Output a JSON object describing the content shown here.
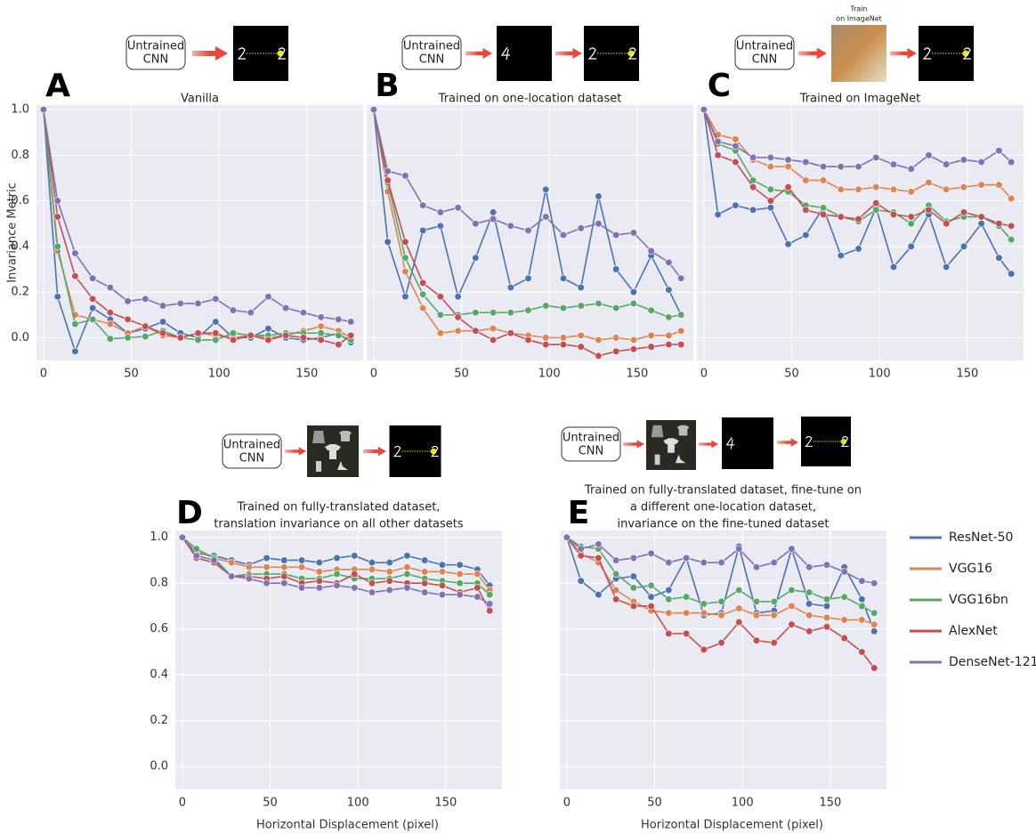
{
  "chart_data": [
    {
      "type": "line",
      "label": "A",
      "title": [
        "Vanilla"
      ],
      "ylabel": "Invariance Metric",
      "pipeline": {
        "box": [
          "Untrained",
          "CNN"
        ]
      },
      "x": [
        0,
        8,
        18,
        28,
        38,
        48,
        58,
        68,
        78,
        88,
        98,
        108,
        118,
        128,
        138,
        148,
        158,
        168,
        175
      ],
      "xlim": [
        -4,
        182
      ],
      "ylim": [
        -0.1,
        1.02
      ],
      "xticks": [
        0,
        50,
        100,
        150
      ],
      "yticks": [
        {
          "value": 0,
          "label": "0.0"
        },
        {
          "value": 0.2,
          "label": "0.2"
        },
        {
          "value": 0.4,
          "label": "0.4"
        },
        {
          "value": 0.6,
          "label": "0.6"
        },
        {
          "value": 0.8,
          "label": "0.8"
        },
        {
          "value": 1,
          "label": "1.0"
        }
      ],
      "grid": true,
      "series": [
        {
          "name": "ResNet-50",
          "color": "#4c72b0",
          "values": [
            1.0,
            0.18,
            -0.06,
            0.13,
            0.08,
            0.02,
            0.04,
            0.07,
            0.02,
            0.0,
            0.07,
            0.0,
            0.0,
            0.04,
            0.0,
            -0.01,
            0.0,
            0.02,
            -0.02
          ]
        },
        {
          "name": "VGG16",
          "color": "#dd8452",
          "values": [
            1.0,
            0.38,
            0.1,
            0.08,
            0.06,
            0.02,
            0.05,
            0.01,
            0.0,
            0.02,
            0.01,
            0.0,
            0.01,
            0.0,
            0.01,
            0.03,
            0.05,
            0.03,
            0.0
          ]
        },
        {
          "name": "VGG16bn",
          "color": "#55a868",
          "values": [
            1.0,
            0.4,
            0.06,
            0.08,
            -0.005,
            0.0,
            0.005,
            0.03,
            0.0,
            -0.01,
            -0.01,
            0.02,
            0.01,
            0.01,
            0.02,
            0.02,
            0.02,
            0.01,
            -0.01
          ]
        },
        {
          "name": "AlexNet",
          "color": "#c44e52",
          "values": [
            1.0,
            0.53,
            0.27,
            0.17,
            0.11,
            0.08,
            0.05,
            0.02,
            0.0,
            0.02,
            0.02,
            -0.01,
            0.01,
            -0.01,
            0.01,
            0.0,
            -0.01,
            -0.03,
            0.01
          ]
        },
        {
          "name": "DenseNet-121",
          "color": "#8172b3",
          "values": [
            1.0,
            0.6,
            0.37,
            0.26,
            0.22,
            0.16,
            0.17,
            0.14,
            0.15,
            0.15,
            0.17,
            0.12,
            0.11,
            0.18,
            0.13,
            0.11,
            0.09,
            0.08,
            0.07
          ]
        }
      ]
    },
    {
      "type": "line",
      "label": "B",
      "title": [
        "Trained on one-location dataset"
      ],
      "pipeline": {
        "box": [
          "Untrained",
          "CNN"
        ]
      },
      "x": [
        0,
        8,
        18,
        28,
        38,
        48,
        58,
        68,
        78,
        88,
        98,
        108,
        118,
        128,
        138,
        148,
        158,
        168,
        175
      ],
      "xlim": [
        -4,
        182
      ],
      "ylim": [
        -0.1,
        1.02
      ],
      "xticks": [
        0,
        50,
        100,
        150
      ],
      "yticks": [
        0,
        0.2,
        0.4,
        0.6,
        0.8,
        1
      ],
      "ytick_labels": false,
      "grid": true,
      "series": [
        {
          "name": "ResNet-50",
          "color": "#4c72b0",
          "values": [
            1.0,
            0.42,
            0.18,
            0.47,
            0.49,
            0.18,
            0.35,
            0.55,
            0.22,
            0.26,
            0.65,
            0.26,
            0.22,
            0.62,
            0.3,
            0.2,
            0.36,
            0.21,
            0.1
          ]
        },
        {
          "name": "VGG16",
          "color": "#dd8452",
          "values": [
            1.0,
            0.64,
            0.29,
            0.13,
            0.02,
            0.03,
            0.03,
            0.04,
            0.02,
            0.01,
            0.0,
            0.0,
            0.01,
            -0.01,
            0.0,
            -0.01,
            0.01,
            0.01,
            0.03
          ]
        },
        {
          "name": "VGG16bn",
          "color": "#55a868",
          "values": [
            1.0,
            0.68,
            0.35,
            0.19,
            0.1,
            0.1,
            0.11,
            0.11,
            0.11,
            0.12,
            0.14,
            0.13,
            0.14,
            0.15,
            0.13,
            0.15,
            0.12,
            0.09,
            0.1
          ]
        },
        {
          "name": "AlexNet",
          "color": "#c44e52",
          "values": [
            1.0,
            0.69,
            0.42,
            0.24,
            0.18,
            0.09,
            0.03,
            -0.01,
            0.02,
            -0.01,
            -0.03,
            -0.03,
            -0.04,
            -0.08,
            -0.06,
            -0.05,
            -0.04,
            -0.03,
            -0.03
          ]
        },
        {
          "name": "DenseNet-121",
          "color": "#8172b3",
          "values": [
            1.0,
            0.73,
            0.71,
            0.58,
            0.55,
            0.57,
            0.5,
            0.52,
            0.49,
            0.47,
            0.53,
            0.45,
            0.48,
            0.5,
            0.45,
            0.46,
            0.38,
            0.33,
            0.26
          ]
        }
      ]
    },
    {
      "type": "line",
      "label": "C",
      "title": [
        "Trained on ImageNet"
      ],
      "pipeline": {
        "box": [
          "Untrained",
          "CNN"
        ],
        "note": [
          "Train",
          "on ImageNet"
        ]
      },
      "x": [
        0,
        8,
        18,
        28,
        38,
        48,
        58,
        68,
        78,
        88,
        98,
        108,
        118,
        128,
        138,
        148,
        158,
        168,
        175
      ],
      "xlim": [
        -4,
        182
      ],
      "ylim": [
        -0.1,
        1.02
      ],
      "xticks": [
        0,
        50,
        100,
        150
      ],
      "yticks": [
        0,
        0.2,
        0.4,
        0.6,
        0.8,
        1
      ],
      "ytick_labels": false,
      "grid": true,
      "series": [
        {
          "name": "ResNet-50",
          "color": "#4c72b0",
          "values": [
            1.0,
            0.54,
            0.58,
            0.56,
            0.57,
            0.41,
            0.45,
            0.57,
            0.36,
            0.39,
            0.57,
            0.31,
            0.4,
            0.54,
            0.31,
            0.4,
            0.5,
            0.35,
            0.28
          ]
        },
        {
          "name": "VGG16",
          "color": "#dd8452",
          "values": [
            1.0,
            0.89,
            0.87,
            0.78,
            0.75,
            0.75,
            0.69,
            0.69,
            0.65,
            0.65,
            0.66,
            0.65,
            0.64,
            0.68,
            0.65,
            0.66,
            0.67,
            0.67,
            0.61
          ]
        },
        {
          "name": "VGG16bn",
          "color": "#55a868",
          "values": [
            1.0,
            0.85,
            0.82,
            0.69,
            0.65,
            0.64,
            0.58,
            0.57,
            0.53,
            0.51,
            0.56,
            0.55,
            0.5,
            0.58,
            0.51,
            0.53,
            0.53,
            0.49,
            0.43
          ]
        },
        {
          "name": "AlexNet",
          "color": "#c44e52",
          "values": [
            1.0,
            0.8,
            0.77,
            0.66,
            0.6,
            0.66,
            0.56,
            0.54,
            0.53,
            0.52,
            0.59,
            0.54,
            0.53,
            0.56,
            0.5,
            0.55,
            0.53,
            0.5,
            0.49
          ]
        },
        {
          "name": "DenseNet-121",
          "color": "#8172b3",
          "values": [
            1.0,
            0.86,
            0.84,
            0.79,
            0.79,
            0.78,
            0.77,
            0.75,
            0.75,
            0.75,
            0.79,
            0.76,
            0.74,
            0.8,
            0.76,
            0.78,
            0.77,
            0.82,
            0.77
          ]
        }
      ]
    },
    {
      "type": "line",
      "label": "D",
      "title": [
        "Trained on fully-translated dataset,",
        "translation invariance on all other datasets"
      ],
      "xlabel": "Horizontal Displacement (pixel)",
      "pipeline": {
        "box": [
          "Untrained",
          "CNN"
        ]
      },
      "x": [
        0,
        8,
        18,
        28,
        38,
        48,
        58,
        68,
        78,
        88,
        98,
        108,
        118,
        128,
        138,
        148,
        158,
        168,
        175
      ],
      "xlim": [
        -4,
        182
      ],
      "ylim": [
        -0.1,
        1.03
      ],
      "xticks": [
        0,
        50,
        100,
        150
      ],
      "yticks": [
        {
          "value": 0,
          "label": "0.0"
        },
        {
          "value": 0.2,
          "label": "0.2"
        },
        {
          "value": 0.4,
          "label": "0.4"
        },
        {
          "value": 0.6,
          "label": "0.6"
        },
        {
          "value": 0.8,
          "label": "0.8"
        },
        {
          "value": 1,
          "label": "1.0"
        }
      ],
      "grid": true,
      "series": [
        {
          "name": "ResNet-50",
          "color": "#4c72b0",
          "values": [
            1.0,
            0.93,
            0.92,
            0.9,
            0.88,
            0.91,
            0.9,
            0.9,
            0.89,
            0.91,
            0.92,
            0.89,
            0.89,
            0.92,
            0.9,
            0.88,
            0.88,
            0.86,
            0.79
          ]
        },
        {
          "name": "VGG16",
          "color": "#dd8452",
          "values": [
            1.0,
            0.94,
            0.91,
            0.89,
            0.87,
            0.87,
            0.87,
            0.87,
            0.85,
            0.86,
            0.86,
            0.86,
            0.85,
            0.87,
            0.85,
            0.85,
            0.84,
            0.84,
            0.77
          ]
        },
        {
          "name": "VGG16bn",
          "color": "#55a868",
          "values": [
            1.0,
            0.95,
            0.91,
            0.83,
            0.84,
            0.84,
            0.84,
            0.82,
            0.82,
            0.84,
            0.82,
            0.82,
            0.82,
            0.84,
            0.82,
            0.81,
            0.8,
            0.8,
            0.75
          ]
        },
        {
          "name": "AlexNet",
          "color": "#c44e52",
          "values": [
            1.0,
            0.91,
            0.89,
            0.83,
            0.83,
            0.82,
            0.83,
            0.8,
            0.81,
            0.8,
            0.84,
            0.8,
            0.81,
            0.8,
            0.8,
            0.79,
            0.76,
            0.78,
            0.68
          ]
        },
        {
          "name": "DenseNet-121",
          "color": "#8172b3",
          "values": [
            1.0,
            0.92,
            0.9,
            0.83,
            0.82,
            0.8,
            0.8,
            0.78,
            0.78,
            0.79,
            0.78,
            0.76,
            0.77,
            0.78,
            0.76,
            0.75,
            0.75,
            0.74,
            0.71
          ]
        }
      ]
    },
    {
      "type": "line",
      "label": "E",
      "title": [
        "Trained on fully-translated dataset, fine-tune on",
        "a different one-location dataset,",
        "invariance on the fine-tuned dataset"
      ],
      "xlabel": "Horizontal Displacement (pixel)",
      "pipeline": {
        "box": [
          "Untrained",
          "CNN"
        ]
      },
      "x": [
        0,
        8,
        18,
        28,
        38,
        48,
        58,
        68,
        78,
        88,
        98,
        108,
        118,
        128,
        138,
        148,
        158,
        168,
        175
      ],
      "xlim": [
        -4,
        182
      ],
      "ylim": [
        -0.1,
        1.03
      ],
      "xticks": [
        0,
        50,
        100,
        150
      ],
      "yticks": [
        0,
        0.2,
        0.4,
        0.6,
        0.8,
        1
      ],
      "ytick_labels": false,
      "grid": true,
      "legend": "outside right",
      "series": [
        {
          "name": "ResNet-50",
          "color": "#4c72b0",
          "values": [
            1.0,
            0.81,
            0.75,
            0.82,
            0.83,
            0.74,
            0.77,
            0.91,
            0.66,
            0.67,
            0.96,
            0.67,
            0.68,
            0.95,
            0.71,
            0.7,
            0.87,
            0.73,
            0.59
          ]
        },
        {
          "name": "VGG16",
          "color": "#dd8452",
          "values": [
            1.0,
            0.93,
            0.89,
            0.77,
            0.72,
            0.68,
            0.67,
            0.67,
            0.67,
            0.66,
            0.69,
            0.66,
            0.66,
            0.7,
            0.66,
            0.65,
            0.64,
            0.64,
            0.62
          ]
        },
        {
          "name": "VGG16bn",
          "color": "#55a868",
          "values": [
            1.0,
            0.96,
            0.95,
            0.84,
            0.78,
            0.79,
            0.73,
            0.74,
            0.71,
            0.72,
            0.77,
            0.72,
            0.72,
            0.77,
            0.76,
            0.73,
            0.74,
            0.7,
            0.67
          ]
        },
        {
          "name": "AlexNet",
          "color": "#c44e52",
          "values": [
            1.0,
            0.92,
            0.91,
            0.73,
            0.7,
            0.7,
            0.58,
            0.58,
            0.51,
            0.54,
            0.63,
            0.55,
            0.54,
            0.62,
            0.59,
            0.61,
            0.56,
            0.5,
            0.43
          ]
        },
        {
          "name": "DenseNet-121",
          "color": "#8172b3",
          "values": [
            1.0,
            0.95,
            0.97,
            0.9,
            0.91,
            0.93,
            0.89,
            0.91,
            0.89,
            0.89,
            0.95,
            0.87,
            0.89,
            0.95,
            0.87,
            0.88,
            0.85,
            0.81,
            0.8
          ]
        }
      ]
    }
  ]
}
